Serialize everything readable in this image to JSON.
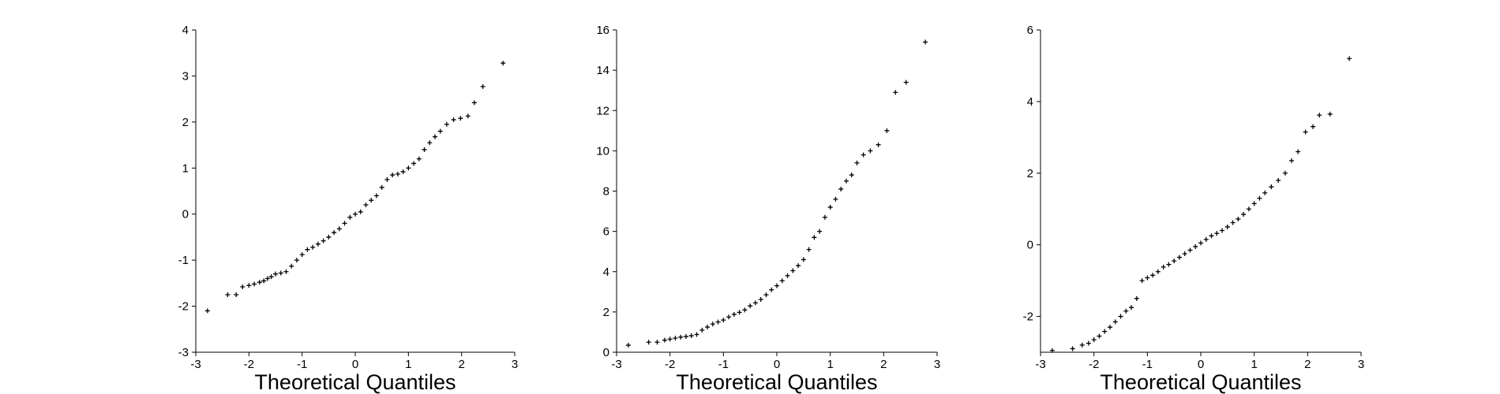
{
  "chart_data": [
    {
      "type": "scatter",
      "title": "",
      "xlabel": "Theoretical Quantiles",
      "ylabel": "",
      "xlim": [
        -3,
        3
      ],
      "ylim": [
        -3,
        4
      ],
      "xticks": [
        -3,
        -2,
        -1,
        0,
        1,
        2,
        3
      ],
      "yticks": [
        -3,
        -2,
        -1,
        0,
        1,
        2,
        3,
        4
      ],
      "marker": "plus",
      "grid": false,
      "points": [
        [
          -2.78,
          -2.1
        ],
        [
          -2.4,
          -1.75
        ],
        [
          -2.24,
          -1.75
        ],
        [
          -2.12,
          -1.58
        ],
        [
          -2.0,
          -1.55
        ],
        [
          -1.9,
          -1.52
        ],
        [
          -1.8,
          -1.48
        ],
        [
          -1.72,
          -1.45
        ],
        [
          -1.65,
          -1.4
        ],
        [
          -1.58,
          -1.36
        ],
        [
          -1.5,
          -1.3
        ],
        [
          -1.4,
          -1.28
        ],
        [
          -1.3,
          -1.25
        ],
        [
          -1.2,
          -1.13
        ],
        [
          -1.1,
          -1.0
        ],
        [
          -1.0,
          -0.88
        ],
        [
          -0.9,
          -0.77
        ],
        [
          -0.8,
          -0.72
        ],
        [
          -0.7,
          -0.65
        ],
        [
          -0.6,
          -0.58
        ],
        [
          -0.5,
          -0.5
        ],
        [
          -0.4,
          -0.4
        ],
        [
          -0.3,
          -0.32
        ],
        [
          -0.2,
          -0.2
        ],
        [
          -0.1,
          -0.07
        ],
        [
          0.0,
          0.0
        ],
        [
          0.1,
          0.05
        ],
        [
          0.2,
          0.2
        ],
        [
          0.3,
          0.3
        ],
        [
          0.4,
          0.4
        ],
        [
          0.5,
          0.58
        ],
        [
          0.6,
          0.75
        ],
        [
          0.7,
          0.85
        ],
        [
          0.8,
          0.87
        ],
        [
          0.9,
          0.92
        ],
        [
          1.0,
          1.0
        ],
        [
          1.1,
          1.1
        ],
        [
          1.2,
          1.2
        ],
        [
          1.3,
          1.4
        ],
        [
          1.4,
          1.55
        ],
        [
          1.5,
          1.68
        ],
        [
          1.6,
          1.8
        ],
        [
          1.72,
          1.95
        ],
        [
          1.85,
          2.05
        ],
        [
          1.98,
          2.08
        ],
        [
          2.12,
          2.13
        ],
        [
          2.24,
          2.42
        ],
        [
          2.4,
          2.77
        ],
        [
          2.78,
          3.28
        ]
      ]
    },
    {
      "type": "scatter",
      "title": "",
      "xlabel": "Theoretical Quantiles",
      "ylabel": "",
      "xlim": [
        -3,
        3
      ],
      "ylim": [
        0,
        16
      ],
      "xticks": [
        -3,
        -2,
        -1,
        0,
        1,
        2,
        3
      ],
      "yticks": [
        0,
        2,
        4,
        6,
        8,
        10,
        12,
        14,
        16
      ],
      "marker": "plus",
      "grid": false,
      "points": [
        [
          -2.78,
          0.35
        ],
        [
          -2.4,
          0.5
        ],
        [
          -2.24,
          0.5
        ],
        [
          -2.1,
          0.6
        ],
        [
          -2.0,
          0.65
        ],
        [
          -1.9,
          0.7
        ],
        [
          -1.8,
          0.75
        ],
        [
          -1.7,
          0.78
        ],
        [
          -1.6,
          0.82
        ],
        [
          -1.5,
          0.88
        ],
        [
          -1.4,
          1.1
        ],
        [
          -1.3,
          1.25
        ],
        [
          -1.2,
          1.4
        ],
        [
          -1.1,
          1.5
        ],
        [
          -1.0,
          1.6
        ],
        [
          -0.9,
          1.75
        ],
        [
          -0.8,
          1.88
        ],
        [
          -0.7,
          1.98
        ],
        [
          -0.6,
          2.1
        ],
        [
          -0.5,
          2.3
        ],
        [
          -0.4,
          2.45
        ],
        [
          -0.3,
          2.62
        ],
        [
          -0.2,
          2.85
        ],
        [
          -0.1,
          3.1
        ],
        [
          0.0,
          3.3
        ],
        [
          0.1,
          3.55
        ],
        [
          0.2,
          3.8
        ],
        [
          0.3,
          4.05
        ],
        [
          0.4,
          4.3
        ],
        [
          0.5,
          4.6
        ],
        [
          0.6,
          5.1
        ],
        [
          0.7,
          5.7
        ],
        [
          0.8,
          6.0
        ],
        [
          0.9,
          6.7
        ],
        [
          1.0,
          7.2
        ],
        [
          1.1,
          7.6
        ],
        [
          1.2,
          8.1
        ],
        [
          1.3,
          8.5
        ],
        [
          1.4,
          8.8
        ],
        [
          1.5,
          9.4
        ],
        [
          1.62,
          9.8
        ],
        [
          1.75,
          10.0
        ],
        [
          1.9,
          10.3
        ],
        [
          2.06,
          11.0
        ],
        [
          2.22,
          12.9
        ],
        [
          2.42,
          13.4
        ],
        [
          2.78,
          15.4
        ]
      ]
    },
    {
      "type": "scatter",
      "title": "",
      "xlabel": "Theoretical Quantiles",
      "ylabel": "",
      "xlim": [
        -3,
        3
      ],
      "ylim": [
        -3,
        6
      ],
      "xticks": [
        -3,
        -2,
        -1,
        0,
        1,
        2,
        3
      ],
      "yticks": [
        -2,
        0,
        2,
        4,
        6
      ],
      "marker": "plus",
      "grid": false,
      "points": [
        [
          -2.78,
          -2.95
        ],
        [
          -2.4,
          -2.9
        ],
        [
          -2.22,
          -2.8
        ],
        [
          -2.1,
          -2.75
        ],
        [
          -2.0,
          -2.65
        ],
        [
          -1.9,
          -2.55
        ],
        [
          -1.8,
          -2.42
        ],
        [
          -1.7,
          -2.3
        ],
        [
          -1.6,
          -2.15
        ],
        [
          -1.5,
          -2.0
        ],
        [
          -1.4,
          -1.85
        ],
        [
          -1.3,
          -1.75
        ],
        [
          -1.2,
          -1.5
        ],
        [
          -1.1,
          -1.0
        ],
        [
          -1.0,
          -0.92
        ],
        [
          -0.9,
          -0.85
        ],
        [
          -0.8,
          -0.75
        ],
        [
          -0.7,
          -0.62
        ],
        [
          -0.6,
          -0.55
        ],
        [
          -0.5,
          -0.45
        ],
        [
          -0.4,
          -0.35
        ],
        [
          -0.3,
          -0.25
        ],
        [
          -0.2,
          -0.15
        ],
        [
          -0.1,
          -0.05
        ],
        [
          0.0,
          0.05
        ],
        [
          0.1,
          0.15
        ],
        [
          0.2,
          0.25
        ],
        [
          0.3,
          0.32
        ],
        [
          0.4,
          0.4
        ],
        [
          0.5,
          0.5
        ],
        [
          0.6,
          0.62
        ],
        [
          0.7,
          0.72
        ],
        [
          0.8,
          0.85
        ],
        [
          0.9,
          1.0
        ],
        [
          1.0,
          1.15
        ],
        [
          1.1,
          1.3
        ],
        [
          1.2,
          1.45
        ],
        [
          1.32,
          1.62
        ],
        [
          1.45,
          1.8
        ],
        [
          1.58,
          2.0
        ],
        [
          1.7,
          2.35
        ],
        [
          1.82,
          2.6
        ],
        [
          1.96,
          3.15
        ],
        [
          2.1,
          3.3
        ],
        [
          2.22,
          3.62
        ],
        [
          2.42,
          3.65
        ],
        [
          2.78,
          5.2
        ]
      ]
    }
  ]
}
